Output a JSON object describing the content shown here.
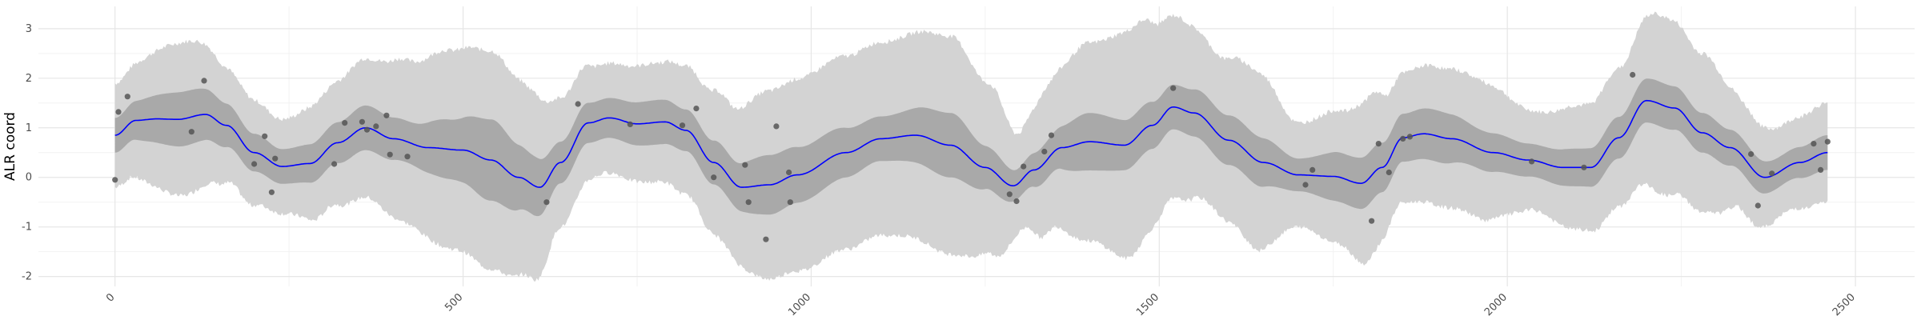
{
  "chart_data": {
    "type": "line",
    "title": "",
    "xlabel": "",
    "ylabel": "ALR coord",
    "xlim": [
      -110,
      2585
    ],
    "ylim": [
      -2.2,
      3.45
    ],
    "x_ticks": [
      0,
      500,
      1000,
      1500,
      2000,
      2500
    ],
    "x_tick_labels": [
      "0",
      "500",
      "1000",
      "1500",
      "2000",
      "2500"
    ],
    "y_ticks": [
      -2,
      -1,
      0,
      1,
      2,
      3
    ],
    "y_tick_labels": [
      "-2",
      "-1",
      "0",
      "1",
      "2",
      "3"
    ],
    "grid": true,
    "colors": {
      "mean_line": "#0000ff",
      "inner_band": "#a9a9a9",
      "outer_band": "#d3d3d3",
      "points": "#555555",
      "grid_major": "#e6e6e6",
      "grid_minor": "#f2f2f2",
      "background": "#ffffff"
    },
    "series": [
      {
        "role": "mean",
        "x": [
          0,
          30,
          60,
          90,
          130,
          160,
          200,
          240,
          280,
          320,
          360,
          400,
          450,
          500,
          540,
          580,
          610,
          640,
          680,
          710,
          750,
          790,
          820,
          860,
          900,
          940,
          980,
          1050,
          1100,
          1150,
          1200,
          1250,
          1290,
          1320,
          1360,
          1400,
          1450,
          1490,
          1520,
          1550,
          1600,
          1650,
          1700,
          1750,
          1790,
          1820,
          1850,
          1880,
          1920,
          1980,
          2030,
          2080,
          2120,
          2160,
          2200,
          2240,
          2280,
          2320,
          2370,
          2420,
          2460
        ],
        "y": [
          0.85,
          1.15,
          1.18,
          1.17,
          1.27,
          1.05,
          0.5,
          0.22,
          0.28,
          0.7,
          1.0,
          0.78,
          0.6,
          0.55,
          0.35,
          0.0,
          -0.2,
          0.3,
          1.1,
          1.2,
          1.08,
          1.12,
          0.95,
          0.3,
          -0.2,
          -0.15,
          0.05,
          0.5,
          0.78,
          0.85,
          0.65,
          0.2,
          -0.17,
          0.15,
          0.6,
          0.72,
          0.65,
          1.05,
          1.42,
          1.3,
          0.75,
          0.3,
          0.05,
          0.02,
          -0.12,
          0.2,
          0.8,
          0.88,
          0.78,
          0.5,
          0.35,
          0.2,
          0.2,
          0.8,
          1.55,
          1.4,
          0.9,
          0.6,
          0.0,
          0.3,
          0.5
        ]
      },
      {
        "role": "inner_band_half_width",
        "x": [
          0,
          100,
          200,
          240,
          300,
          360,
          420,
          480,
          540,
          600,
          640,
          700,
          780,
          820,
          880,
          940,
          1000,
          1100,
          1200,
          1260,
          1300,
          1340,
          1400,
          1460,
          1520,
          1580,
          1640,
          1700,
          1760,
          1800,
          1840,
          1900,
          1960,
          2040,
          2100,
          2160,
          2220,
          2280,
          2340,
          2400,
          2460
        ],
        "y": [
          0.35,
          0.55,
          0.38,
          0.35,
          0.4,
          0.45,
          0.42,
          0.6,
          0.82,
          0.6,
          0.42,
          0.4,
          0.45,
          0.42,
          0.45,
          0.6,
          0.55,
          0.45,
          0.65,
          0.42,
          0.3,
          0.38,
          0.58,
          0.5,
          0.45,
          0.5,
          0.5,
          0.33,
          0.5,
          0.52,
          0.48,
          0.52,
          0.4,
          0.33,
          0.38,
          0.42,
          0.45,
          0.4,
          0.35,
          0.3,
          0.35
        ]
      },
      {
        "role": "outer_band_half_width",
        "x": [
          0,
          100,
          180,
          240,
          300,
          360,
          420,
          480,
          540,
          600,
          640,
          700,
          780,
          820,
          880,
          940,
          1000,
          1100,
          1200,
          1260,
          1300,
          1340,
          1400,
          1460,
          1520,
          1580,
          1640,
          1700,
          1760,
          1800,
          1840,
          1900,
          1960,
          2040,
          2100,
          2160,
          2220,
          2280,
          2340,
          2400,
          2460
        ],
        "y": [
          1.05,
          1.55,
          1.1,
          0.95,
          1.2,
          1.4,
          1.65,
          2.0,
          2.2,
          1.9,
          1.3,
          1.1,
          1.2,
          1.3,
          1.5,
          1.9,
          1.95,
          1.95,
          2.2,
          1.7,
          1.0,
          1.5,
          2.0,
          2.3,
          1.85,
          1.6,
          1.8,
          1.05,
          1.35,
          1.65,
          1.3,
          1.4,
          1.4,
          1.0,
          1.25,
          1.4,
          1.8,
          1.6,
          1.1,
          0.9,
          1.0
        ]
      },
      {
        "role": "observations",
        "x": [
          0,
          5,
          18,
          110,
          128,
          200,
          215,
          225,
          230,
          315,
          330,
          355,
          362,
          375,
          390,
          395,
          420,
          620,
          665,
          740,
          815,
          835,
          860,
          905,
          910,
          935,
          950,
          968,
          970,
          1285,
          1295,
          1305,
          1335,
          1345,
          1520,
          1710,
          1720,
          1805,
          1815,
          1830,
          1850,
          1860,
          2035,
          2110,
          2180,
          2350,
          2360,
          2380,
          2440,
          2450,
          2460
        ],
        "y": [
          -0.05,
          1.32,
          1.63,
          0.92,
          1.95,
          0.27,
          0.83,
          -0.3,
          0.38,
          0.27,
          1.1,
          1.12,
          0.96,
          1.03,
          1.25,
          0.46,
          0.42,
          -0.5,
          1.48,
          1.07,
          1.05,
          1.39,
          0.0,
          0.25,
          -0.5,
          -1.25,
          1.03,
          0.1,
          -0.5,
          -0.34,
          -0.48,
          0.22,
          0.52,
          0.85,
          1.8,
          -0.15,
          0.15,
          -0.88,
          0.68,
          0.1,
          0.78,
          0.82,
          0.32,
          0.2,
          2.07,
          0.47,
          -0.57,
          0.08,
          0.68,
          0.15,
          0.72
        ]
      }
    ]
  }
}
